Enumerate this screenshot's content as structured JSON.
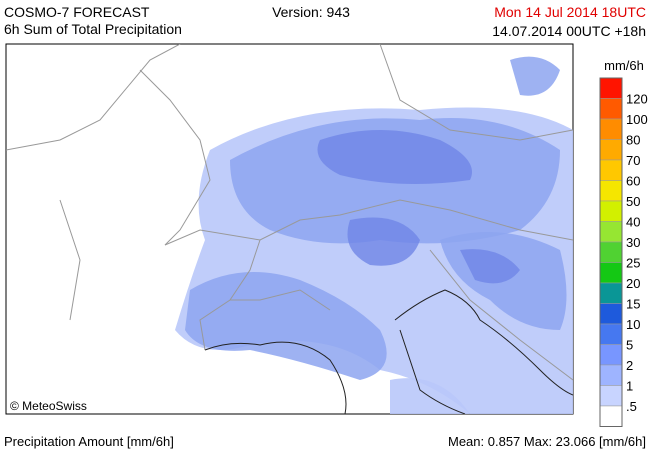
{
  "header": {
    "model": "COSMO-7 FORECAST",
    "product": "6h Sum of Total Precipitation",
    "version": "Version: 943",
    "valid_time": "Mon 14 Jul 2014 18UTC",
    "run_time": "14.07.2014 00UTC +18h"
  },
  "map": {
    "copyright": "© MeteoSwiss"
  },
  "legend": {
    "unit": "mm/6h",
    "labels": [
      "120",
      "100",
      "80",
      "70",
      "60",
      "50",
      "40",
      "30",
      "25",
      "20",
      "15",
      "10",
      "5",
      "2",
      "1",
      ".5"
    ],
    "colors": [
      "#ff1400",
      "#ff5a00",
      "#ff8c00",
      "#ffaa00",
      "#ffc800",
      "#f5e600",
      "#d2f000",
      "#96e632",
      "#50d232",
      "#14c814",
      "#0a9696",
      "#1e5adc",
      "#4678f0",
      "#7896ff",
      "#9eb4ff",
      "#c8d4ff",
      "#ffffff"
    ]
  },
  "footer": {
    "left": "Precipitation Amount [mm/6h]",
    "right": "Mean:  0.857 Max: 23.066 [mm/6h]"
  }
}
